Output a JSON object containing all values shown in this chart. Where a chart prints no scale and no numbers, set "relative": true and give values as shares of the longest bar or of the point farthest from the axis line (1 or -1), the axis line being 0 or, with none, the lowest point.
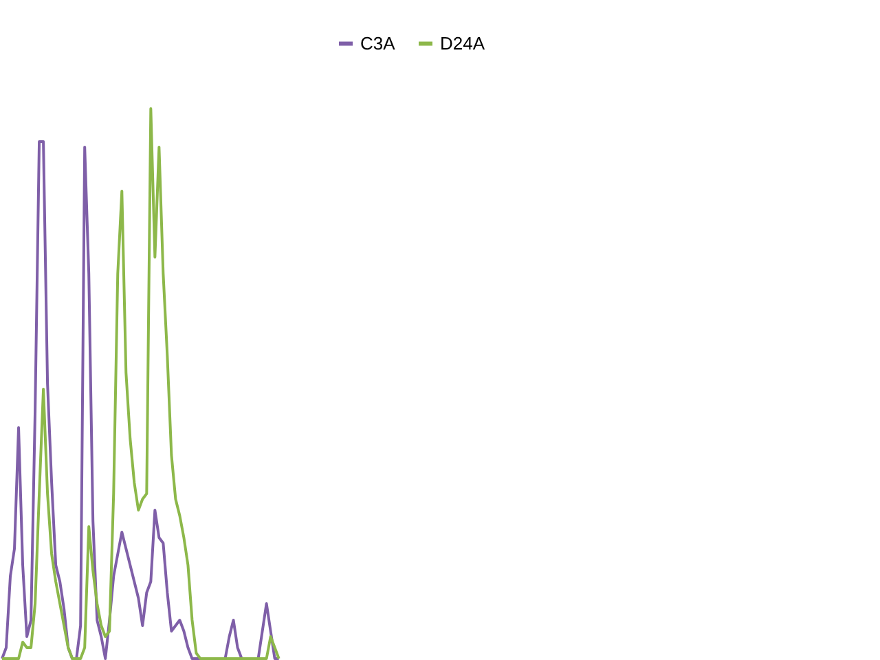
{
  "chart_data": {
    "type": "line",
    "relative": true,
    "legend": "top",
    "marker": "none",
    "line_style": "solid",
    "categories": [
      null,
      null,
      null,
      null,
      null,
      null,
      null,
      null,
      null,
      null,
      null,
      null,
      null,
      null,
      null,
      null,
      null,
      null,
      null,
      null,
      null,
      null,
      null,
      null,
      null,
      null,
      null,
      null,
      null,
      null,
      null,
      null,
      null,
      null,
      null,
      null,
      null,
      null,
      null,
      null,
      null,
      null,
      null,
      null,
      null,
      null,
      null,
      null,
      null,
      null,
      null,
      null,
      null,
      null,
      null,
      null,
      null,
      null,
      null,
      null,
      null,
      null,
      null,
      null,
      null,
      null,
      null,
      null,
      null,
      null,
      null,
      null,
      null,
      null,
      null,
      null,
      null,
      null,
      null,
      null,
      null,
      null,
      null,
      null,
      null,
      null,
      null,
      null,
      null,
      null,
      null,
      null,
      null,
      null,
      null,
      null,
      null,
      null,
      null,
      null,
      null,
      null,
      null,
      null,
      null,
      null,
      null,
      null,
      null,
      null,
      null,
      null,
      null,
      null,
      null,
      null,
      null,
      null,
      null,
      null,
      null,
      null,
      null,
      null,
      null,
      null,
      null,
      null,
      null,
      null,
      null,
      null,
      null,
      null,
      null,
      null,
      null,
      null,
      null,
      null,
      null,
      null,
      null,
      null,
      null,
      null,
      null,
      null,
      null,
      null,
      null,
      null,
      null,
      null,
      null,
      null,
      null,
      null,
      null,
      null,
      null,
      null,
      null,
      null,
      null,
      null,
      null,
      null,
      null,
      null,
      null,
      null,
      null,
      null,
      null,
      null,
      null,
      null,
      null,
      null,
      null,
      null,
      null,
      null,
      null,
      null,
      null,
      null,
      null,
      null,
      null,
      null,
      null,
      null,
      null,
      null,
      null,
      null,
      null,
      null,
      null,
      null,
      null,
      null,
      null,
      null,
      null,
      null,
      null,
      null,
      null,
      null,
      null
    ],
    "series": [
      {
        "name": "C3A",
        "color": "#7f5fa8",
        "values": [
          0,
          0.02,
          0.15,
          0.2,
          0.42,
          0.17,
          0.04,
          0.07,
          0.45,
          0.94,
          0.94,
          0.5,
          0.32,
          0.17,
          0.14,
          0.09,
          0.02,
          0,
          0,
          0.06,
          0.93,
          0.7,
          0.25,
          0.07,
          0.04,
          0,
          0.07,
          0.15,
          0.19,
          0.23,
          0.2,
          0.17,
          0.14,
          0.11,
          0.06,
          0.12,
          0.14,
          0.27,
          0.22,
          0.21,
          0.12,
          0.05,
          0.06,
          0.07,
          0.05,
          0.02,
          0,
          0,
          0,
          0,
          0,
          0,
          0,
          0,
          0,
          0.04,
          0.07,
          0.02,
          0,
          0,
          0,
          0,
          0,
          0.05,
          0.1,
          0.05,
          0,
          0,
          null,
          null,
          null,
          null,
          null,
          null,
          null,
          null,
          null,
          null,
          null,
          null,
          null,
          null,
          null,
          null,
          null,
          null,
          null,
          null,
          null,
          null,
          null,
          null,
          null,
          null,
          null,
          null,
          null,
          null,
          null,
          null,
          null,
          null,
          null,
          null,
          null,
          null,
          null,
          null,
          null,
          null,
          null,
          null,
          null,
          null,
          null,
          null,
          null,
          null,
          null,
          null,
          null,
          null,
          null,
          null,
          null,
          null,
          null,
          null,
          null,
          null,
          null,
          null,
          null,
          null,
          null,
          null,
          null,
          null,
          null,
          null,
          null,
          null,
          null,
          null,
          null,
          null,
          null,
          null,
          null,
          null,
          null,
          null,
          null,
          null,
          null,
          null,
          null,
          null,
          null,
          null,
          null,
          null,
          null,
          null,
          null,
          null,
          null,
          null,
          null,
          null,
          null,
          null,
          null,
          null,
          null,
          null,
          null,
          null,
          null,
          null,
          null,
          null,
          null,
          null,
          null,
          null,
          null,
          null,
          null,
          null,
          null,
          null,
          null,
          null,
          null,
          null,
          null,
          null,
          null,
          null,
          null,
          null,
          null,
          null,
          null,
          null,
          null,
          null,
          null,
          null,
          null,
          null,
          null
        ]
      },
      {
        "name": "D24A",
        "color": "#8db84a",
        "values": [
          0,
          0,
          0,
          0,
          0,
          0.03,
          0.02,
          0.02,
          0.1,
          0.3,
          0.49,
          0.3,
          0.19,
          0.14,
          0.1,
          0.06,
          0.02,
          0,
          0,
          0,
          0.02,
          0.24,
          0.16,
          0.1,
          0.06,
          0.04,
          0.05,
          0.3,
          0.7,
          0.85,
          0.52,
          0.4,
          0.32,
          0.27,
          0.29,
          0.3,
          1,
          0.73,
          0.93,
          0.7,
          0.55,
          0.37,
          0.29,
          0.26,
          0.22,
          0.17,
          0.07,
          0.01,
          0,
          0,
          0,
          0,
          0,
          0,
          0,
          0,
          0,
          0,
          0,
          0,
          0,
          0,
          0,
          0,
          0,
          0.04,
          0.02,
          0,
          null,
          null,
          null,
          null,
          null,
          null,
          null,
          null,
          null,
          null,
          null,
          null,
          null,
          null,
          null,
          null,
          null,
          null,
          null,
          null,
          null,
          null,
          null,
          null,
          null,
          null,
          null,
          null,
          null,
          null,
          null,
          null,
          null,
          null,
          null,
          null,
          null,
          null,
          null,
          null,
          null,
          null,
          null,
          null,
          null,
          null,
          null,
          null,
          null,
          null,
          null,
          null,
          null,
          null,
          null,
          null,
          null,
          null,
          null,
          null,
          null,
          null,
          null,
          null,
          null,
          null,
          null,
          null,
          null,
          null,
          null,
          null,
          null,
          null,
          null,
          null,
          null,
          null,
          null,
          null,
          null,
          null,
          null,
          null,
          null,
          null,
          null,
          null,
          null,
          null,
          null,
          null,
          null,
          null,
          null,
          null,
          null,
          null,
          null,
          null,
          null,
          null,
          null,
          null,
          null,
          null,
          null,
          null,
          null,
          null,
          null,
          null,
          null,
          null,
          null,
          null,
          null,
          null,
          null,
          null,
          null,
          null,
          null,
          null,
          null,
          null,
          null,
          null,
          null,
          null,
          null,
          null,
          null,
          null,
          null,
          null,
          null,
          null,
          null,
          null,
          null,
          null,
          null,
          null,
          null
        ]
      }
    ]
  }
}
